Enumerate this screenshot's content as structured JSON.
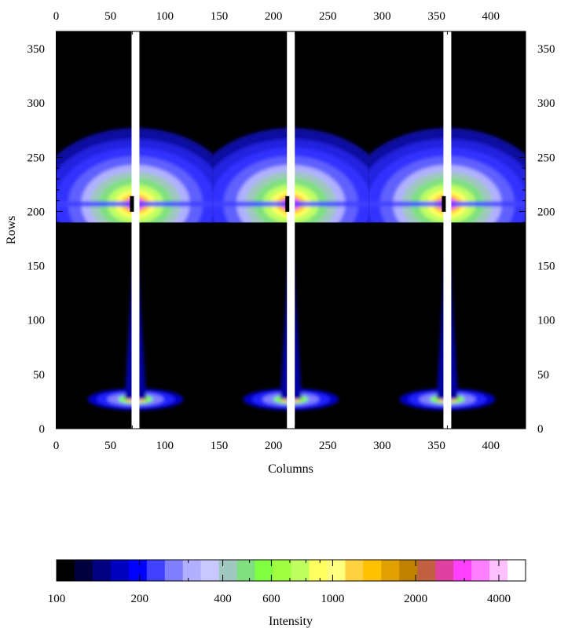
{
  "chart_data": [
    {
      "type": "heatmap",
      "title": "",
      "xlabel": "Columns",
      "ylabel": "Rows",
      "xlim": [
        0,
        432
      ],
      "ylim": [
        0,
        366
      ],
      "x_ticks": [
        0,
        50,
        100,
        150,
        200,
        250,
        300,
        350,
        400
      ],
      "x_tick_labels": [
        "0",
        "50",
        "100",
        "150",
        "200",
        "250",
        "300",
        "350",
        "400"
      ],
      "y_ticks": [
        0,
        50,
        100,
        150,
        200,
        250,
        300,
        350
      ],
      "y_tick_labels": [
        "0",
        "50",
        "100",
        "150",
        "200",
        "250",
        "300",
        "350"
      ],
      "color_scale": "log",
      "panels": [
        {
          "x_range": [
            0,
            144
          ],
          "beam_col": 73
        },
        {
          "x_range": [
            144,
            288
          ],
          "beam_col": 216
        },
        {
          "x_range": [
            288,
            432
          ],
          "beam_col": 360
        }
      ],
      "upper_block_rows": [
        190,
        366
      ],
      "upper_peak_row": 207,
      "lower_peak_row": 27
    },
    {
      "type": "colorbar",
      "xlabel": "Intensity",
      "scale": "log",
      "range": [
        100,
        5000
      ],
      "ticks": [
        100,
        200,
        400,
        600,
        1000,
        2000,
        4000
      ],
      "tick_labels": [
        "100",
        "200",
        "400",
        "600",
        "1000",
        "2000",
        "4000"
      ],
      "minor_ticks": [
        300,
        500,
        700,
        800,
        900,
        3000
      ],
      "colors": [
        "#000000",
        "#000040",
        "#000080",
        "#0000c0",
        "#0000ff",
        "#4040ff",
        "#8080ff",
        "#b0b0ff",
        "#c8c8ff",
        "#a0c8c0",
        "#80e080",
        "#80ff40",
        "#a0ff40",
        "#c0ff60",
        "#ffff60",
        "#ffff80",
        "#ffd040",
        "#ffc000",
        "#e0a000",
        "#c08000",
        "#c06040",
        "#e040a0",
        "#ff40ff",
        "#ff80ff",
        "#ffc0ff",
        "#ffffff"
      ]
    }
  ]
}
